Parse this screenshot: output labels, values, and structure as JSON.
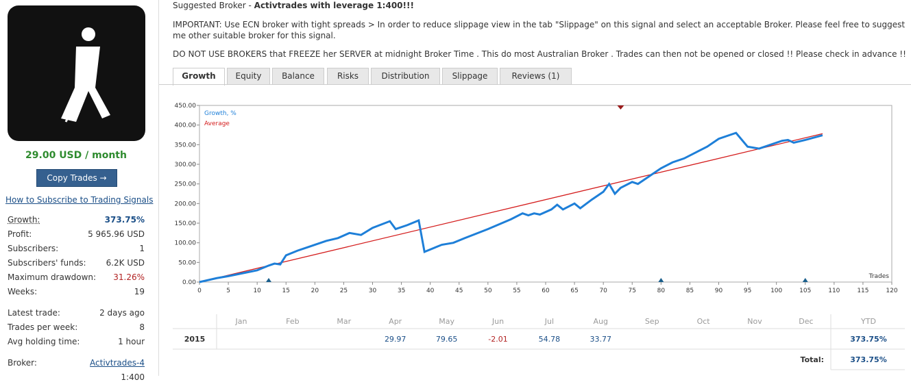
{
  "sidebar": {
    "price": "29.00 USD / month",
    "button": "Copy Trades →",
    "link": "How to Subscribe to Trading Signals",
    "stats": [
      {
        "label": "Growth:",
        "value": "373.75%"
      },
      {
        "label": "Profit:",
        "value": "5 965.96 USD"
      },
      {
        "label": "Subscribers:",
        "value": "1"
      },
      {
        "label": "Subscribers' funds:",
        "value": "6.2K USD"
      },
      {
        "label": "Maximum drawdown:",
        "value": "31.26%"
      },
      {
        "label": "Weeks:",
        "value": "19"
      },
      {
        "label": "Latest trade:",
        "value": "2 days ago"
      },
      {
        "label": "Trades per week:",
        "value": "8"
      },
      {
        "label": "Avg holding time:",
        "value": "1 hour"
      },
      {
        "label": "Broker:",
        "value": "Activtrades-4"
      },
      {
        "value": "1:400"
      }
    ]
  },
  "header": {
    "broker_prefix": "Suggested Broker - ",
    "broker_name": "Activtrades with leverage 1:400!!!",
    "notes": [
      "IMPORTANT: Use ECN broker with tight spreads > In order to reduce slippage view in the tab \"Slippage\" on this signal and select an acceptable Broker. Please feel free to suggest me other suitable broker for this signal.",
      "DO NOT USE BROKERS that FREEZE her SERVER at midnight Broker Time . This do most Australian Broker . Trades can then not be opened or closed !! Please check in advance !!"
    ]
  },
  "tabs": [
    "Growth",
    "Equity",
    "Balance",
    "Risks",
    "Distribution",
    "Slippage",
    "Reviews (1)"
  ],
  "chart_data": {
    "type": "line",
    "x_label": "Trades",
    "series": [
      {
        "name": "Growth, %",
        "color": "#1e7fd8",
        "x": [
          0,
          3,
          5,
          8,
          10,
          12,
          13,
          14,
          15,
          17,
          19,
          20,
          22,
          24,
          26,
          28,
          30,
          33,
          34,
          36,
          38,
          39,
          42,
          44,
          46,
          50,
          54,
          56,
          57,
          58,
          59,
          61,
          62,
          63,
          65,
          66,
          68,
          70,
          71,
          72,
          73,
          75,
          76,
          78,
          80,
          82,
          84,
          86,
          88,
          90,
          93,
          95,
          97,
          99,
          101,
          102,
          103,
          105,
          108
        ],
        "values": [
          0,
          10,
          15,
          24,
          30,
          42,
          47,
          45,
          68,
          80,
          90,
          95,
          105,
          112,
          125,
          120,
          138,
          155,
          135,
          145,
          157,
          77,
          95,
          100,
          112,
          135,
          160,
          175,
          170,
          175,
          172,
          185,
          197,
          185,
          200,
          188,
          210,
          230,
          250,
          225,
          240,
          255,
          250,
          270,
          290,
          305,
          315,
          330,
          345,
          365,
          380,
          345,
          340,
          350,
          360,
          362,
          355,
          362,
          374
        ]
      },
      {
        "name": "Average",
        "color": "#d41c1c",
        "x": [
          0,
          108
        ],
        "values": [
          0,
          378
        ]
      }
    ],
    "xlim": [
      0,
      120
    ],
    "xticks": [
      0,
      5,
      10,
      15,
      20,
      25,
      30,
      35,
      40,
      45,
      50,
      55,
      60,
      65,
      70,
      75,
      80,
      85,
      90,
      95,
      100,
      105,
      110,
      115,
      120
    ],
    "ylim": [
      0,
      450
    ],
    "yticks": [
      {
        "value": 0,
        "label": "0.00"
      },
      {
        "value": 50,
        "label": "50.00"
      },
      {
        "value": 100,
        "label": "100.00"
      },
      {
        "value": 150,
        "label": "150.00"
      },
      {
        "value": 200,
        "label": "200.00"
      },
      {
        "value": 250,
        "label": "250.00"
      },
      {
        "value": 300,
        "label": "300.00"
      },
      {
        "value": 350,
        "label": "350.00"
      },
      {
        "value": 400,
        "label": "400.00"
      },
      {
        "value": 450,
        "label": "450.00"
      }
    ],
    "markers": {
      "bottom": [
        12,
        80,
        105
      ],
      "top": [
        73
      ]
    }
  },
  "monthly_table": {
    "months": [
      "Jan",
      "Feb",
      "Mar",
      "Apr",
      "May",
      "Jun",
      "Jul",
      "Aug",
      "Sep",
      "Oct",
      "Nov",
      "Dec"
    ],
    "ytd_header": "YTD",
    "rows": [
      {
        "year": "2015",
        "values": [
          null,
          null,
          null,
          29.97,
          79.65,
          -2.01,
          54.78,
          33.77,
          null,
          null,
          null,
          null
        ],
        "ytd": "373.75%"
      }
    ],
    "total_label": "Total:",
    "total": "373.75%"
  }
}
